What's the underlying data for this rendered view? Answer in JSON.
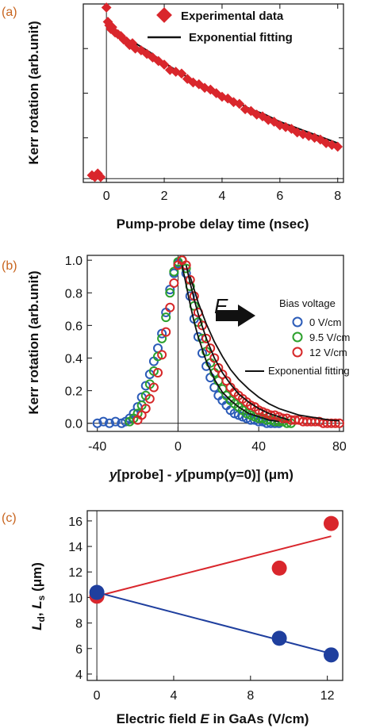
{
  "chart_data": [
    {
      "panel_label": "(a)",
      "type": "scatter",
      "xlabel": "Pump-probe delay time (nsec)",
      "ylabel": "Kerr rotation (arb.unit)",
      "xlim": [
        -0.8,
        8.2
      ],
      "ylim": [
        0,
        1
      ],
      "xticks": [
        0,
        2,
        4,
        6,
        8
      ],
      "yticks_shown": false,
      "legend_position": "top-right",
      "series": [
        {
          "name": "Experimental data",
          "marker": "diamond",
          "color": "#d9262c",
          "x": [
            -0.5,
            -0.4,
            -0.3,
            -0.2,
            0.0,
            0.05,
            0.1,
            0.15,
            0.2,
            0.3,
            0.4,
            0.5,
            0.6,
            0.7,
            0.8,
            0.9,
            1.0,
            1.2,
            1.4,
            1.6,
            1.8,
            2.0,
            2.2,
            2.4,
            2.6,
            2.8,
            3.0,
            3.2,
            3.4,
            3.6,
            3.8,
            4.0,
            4.2,
            4.4,
            4.6,
            4.8,
            5.0,
            5.2,
            5.4,
            5.6,
            5.8,
            6.0,
            6.2,
            6.4,
            6.6,
            6.8,
            7.0,
            7.2,
            7.4,
            7.6,
            7.8,
            8.0
          ],
          "y": [
            0.04,
            0.03,
            0.05,
            0.03,
            0.98,
            0.9,
            0.88,
            0.86,
            0.87,
            0.84,
            0.83,
            0.82,
            0.8,
            0.79,
            0.77,
            0.78,
            0.75,
            0.74,
            0.72,
            0.7,
            0.68,
            0.66,
            0.63,
            0.62,
            0.61,
            0.58,
            0.56,
            0.55,
            0.53,
            0.52,
            0.5,
            0.48,
            0.47,
            0.45,
            0.44,
            0.41,
            0.4,
            0.38,
            0.37,
            0.35,
            0.34,
            0.32,
            0.31,
            0.3,
            0.28,
            0.27,
            0.26,
            0.25,
            0.24,
            0.22,
            0.21,
            0.2
          ]
        },
        {
          "name": "Exponential fitting",
          "type": "line",
          "color": "#111111",
          "x": [
            0.1,
            0.5,
            1,
            1.5,
            2,
            2.5,
            3,
            3.5,
            4,
            4.5,
            5,
            5.5,
            6,
            6.5,
            7,
            7.5,
            8
          ],
          "y": [
            0.85,
            0.82,
            0.78,
            0.73,
            0.67,
            0.62,
            0.57,
            0.53,
            0.49,
            0.45,
            0.41,
            0.38,
            0.34,
            0.31,
            0.28,
            0.25,
            0.22
          ]
        }
      ]
    },
    {
      "panel_label": "(b)",
      "type": "scatter",
      "xlabel_parts": [
        "y",
        "[probe] - ",
        "y",
        "[pump(y=0)]  (μm)"
      ],
      "ylabel": "Kerr rotation (arb.unit)",
      "xlim": [
        -45,
        82
      ],
      "ylim": [
        -0.05,
        1.03
      ],
      "xticks": [
        -40,
        0,
        40,
        80
      ],
      "yticks": [
        0.0,
        0.2,
        0.4,
        0.6,
        0.8,
        1.0
      ],
      "ytick_labels": [
        "0.0",
        "0.2",
        "0.4",
        "0.6",
        "0.8",
        "1.0"
      ],
      "annotation": "E",
      "legend_title": "Bias voltage",
      "legend_position": "right",
      "series": [
        {
          "name": "0 V/cm",
          "marker": "open-circle",
          "color": "#2b5bb8",
          "x": [
            -40,
            -37,
            -34,
            -31,
            -28,
            -26,
            -24,
            -22,
            -20,
            -18,
            -16,
            -14,
            -12,
            -10,
            -8,
            -6,
            -4,
            -2,
            0,
            2,
            4,
            6,
            8,
            10,
            12,
            14,
            16,
            18,
            20,
            22,
            24,
            26,
            28,
            30,
            32,
            34,
            36,
            38,
            40,
            42,
            44,
            46,
            48,
            50
          ],
          "y": [
            0.0,
            0.01,
            0.0,
            0.01,
            0.0,
            0.01,
            0.03,
            0.06,
            0.1,
            0.16,
            0.23,
            0.3,
            0.38,
            0.46,
            0.55,
            0.68,
            0.82,
            0.92,
            0.98,
            1.0,
            0.92,
            0.78,
            0.64,
            0.53,
            0.43,
            0.35,
            0.28,
            0.22,
            0.17,
            0.14,
            0.11,
            0.08,
            0.06,
            0.05,
            0.04,
            0.03,
            0.02,
            0.02,
            0.01,
            0.01,
            0.0,
            0.0,
            0.0,
            0.0
          ]
        },
        {
          "name": "9.5 V/cm",
          "marker": "open-circle",
          "color": "#2ca02c",
          "x": [
            -24,
            -22,
            -20,
            -18,
            -16,
            -14,
            -12,
            -10,
            -8,
            -6,
            -4,
            -2,
            0,
            2,
            4,
            6,
            8,
            10,
            12,
            14,
            16,
            18,
            20,
            22,
            24,
            26,
            28,
            30,
            32,
            34,
            36,
            38,
            40,
            42,
            44,
            46,
            48,
            50,
            52,
            54,
            56
          ],
          "y": [
            0.01,
            0.03,
            0.06,
            0.11,
            0.17,
            0.24,
            0.32,
            0.41,
            0.52,
            0.65,
            0.8,
            0.93,
            0.99,
            1.0,
            0.95,
            0.84,
            0.72,
            0.62,
            0.52,
            0.44,
            0.37,
            0.31,
            0.26,
            0.21,
            0.17,
            0.14,
            0.12,
            0.1,
            0.08,
            0.06,
            0.05,
            0.04,
            0.03,
            0.03,
            0.02,
            0.02,
            0.01,
            0.01,
            0.01,
            0.0,
            0.0
          ]
        },
        {
          "name": "12 V/cm",
          "marker": "open-circle",
          "color": "#d62728",
          "x": [
            -20,
            -18,
            -16,
            -14,
            -12,
            -10,
            -8,
            -6,
            -4,
            -2,
            0,
            2,
            4,
            6,
            8,
            10,
            12,
            14,
            16,
            18,
            20,
            22,
            24,
            26,
            28,
            30,
            32,
            34,
            36,
            38,
            40,
            42,
            44,
            46,
            48,
            50,
            52,
            54,
            56,
            58,
            60,
            62,
            64,
            66,
            68,
            70,
            72,
            74,
            76,
            78,
            80
          ],
          "y": [
            0.02,
            0.05,
            0.09,
            0.15,
            0.22,
            0.31,
            0.42,
            0.56,
            0.71,
            0.86,
            0.97,
            1.0,
            0.97,
            0.88,
            0.78,
            0.68,
            0.6,
            0.52,
            0.46,
            0.4,
            0.34,
            0.3,
            0.26,
            0.22,
            0.19,
            0.17,
            0.15,
            0.13,
            0.11,
            0.1,
            0.08,
            0.07,
            0.06,
            0.05,
            0.05,
            0.04,
            0.03,
            0.03,
            0.02,
            0.02,
            0.02,
            0.01,
            0.01,
            0.01,
            0.01,
            0.01,
            0.0,
            0.0,
            0.0,
            0.0,
            0.0
          ]
        },
        {
          "name": "Exponential fitting",
          "type": "line",
          "color": "#111111",
          "segments": [
            {
              "x": [
                2,
                4,
                6,
                8,
                10,
                14,
                18,
                22,
                26,
                30,
                35,
                40,
                45,
                50
              ],
              "y": [
                0.97,
                0.85,
                0.73,
                0.62,
                0.53,
                0.38,
                0.27,
                0.19,
                0.14,
                0.1,
                0.06,
                0.04,
                0.02,
                0.01
              ]
            },
            {
              "x": [
                4,
                6,
                8,
                10,
                14,
                18,
                22,
                26,
                30,
                35,
                40,
                45,
                50,
                55
              ],
              "y": [
                0.97,
                0.86,
                0.76,
                0.67,
                0.52,
                0.4,
                0.31,
                0.24,
                0.18,
                0.13,
                0.09,
                0.06,
                0.04,
                0.02
              ]
            },
            {
              "x": [
                6,
                8,
                10,
                14,
                18,
                22,
                26,
                30,
                35,
                40,
                45,
                50,
                55,
                60,
                65,
                70,
                75,
                80
              ],
              "y": [
                0.9,
                0.82,
                0.74,
                0.61,
                0.5,
                0.41,
                0.33,
                0.27,
                0.21,
                0.16,
                0.12,
                0.09,
                0.07,
                0.05,
                0.04,
                0.03,
                0.02,
                0.015
              ]
            }
          ]
        }
      ]
    },
    {
      "panel_label": "(c)",
      "type": "scatter",
      "xlabel_parts": [
        "Electric field ",
        "E",
        " in GaAs (V/cm)"
      ],
      "ylabel_parts": [
        "L",
        "d",
        ", ",
        "L",
        "s",
        " (μm)"
      ],
      "xlim": [
        -0.5,
        12.8
      ],
      "ylim": [
        3.5,
        16.8
      ],
      "xticks": [
        0,
        4,
        8,
        12
      ],
      "yticks": [
        4,
        6,
        8,
        10,
        12,
        14,
        16
      ],
      "series": [
        {
          "color": "#d9262c",
          "marker": "filled-circle",
          "x": [
            0,
            9.5,
            12.2
          ],
          "y": [
            10.1,
            12.3,
            15.8
          ],
          "fit": {
            "x": [
              0,
              12.2
            ],
            "y": [
              10.1,
              14.8
            ]
          }
        },
        {
          "color": "#1f3f9e",
          "marker": "filled-circle",
          "x": [
            0,
            9.5,
            12.2
          ],
          "y": [
            10.4,
            6.8,
            5.5
          ],
          "fit": {
            "x": [
              0,
              12.2
            ],
            "y": [
              10.4,
              5.6
            ]
          }
        }
      ]
    }
  ]
}
